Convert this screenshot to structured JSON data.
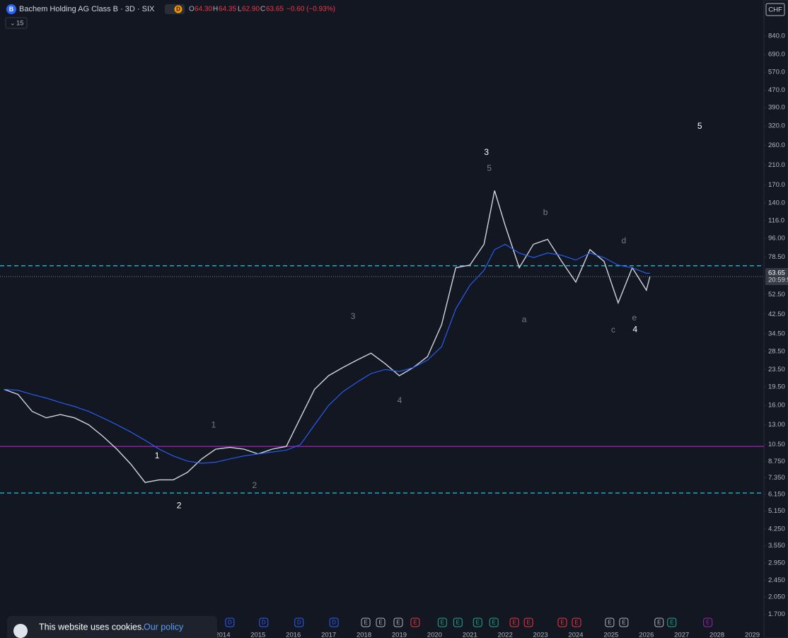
{
  "header": {
    "title": "Bachem Holding AG Class B · 3D · SIX",
    "logo": "B",
    "badge": "D",
    "o_label": "O",
    "open": "64.30",
    "h_label": "H",
    "high": "64.35",
    "l_label": "L",
    "low": "62.90",
    "c_label": "C",
    "close": "63.65",
    "change": "−0.60 (−0.93%)",
    "indicator": "15",
    "currency": "CHF"
  },
  "cookie": {
    "text": "This website uses cookies.",
    "link": "Our policy"
  },
  "chart_data": {
    "type": "line",
    "log_scale": true,
    "grid": false,
    "x": [
      2007.8,
      2008.2,
      2008.6,
      2009.0,
      2009.4,
      2009.8,
      2010.2,
      2010.6,
      2011.0,
      2011.4,
      2011.8,
      2012.2,
      2012.6,
      2013.0,
      2013.4,
      2013.8,
      2014.2,
      2014.6,
      2015.0,
      2015.4,
      2015.8,
      2016.2,
      2016.6,
      2017.0,
      2017.4,
      2017.8,
      2018.2,
      2018.6,
      2019.0,
      2019.4,
      2019.8,
      2020.2,
      2020.6,
      2021.0,
      2021.4,
      2021.7,
      2022.0,
      2022.4,
      2022.8,
      2023.2,
      2023.6,
      2024.0,
      2024.4,
      2024.8,
      2025.2,
      2025.6,
      2026.0,
      2026.1
    ],
    "series": [
      {
        "name": "Price",
        "color": "#d1d4dc",
        "values": [
          19,
          18,
          15,
          14,
          14.5,
          14,
          13,
          11.5,
          10,
          8.5,
          7,
          7.2,
          7.2,
          7.8,
          9,
          10,
          10.2,
          10,
          9.5,
          10,
          10.3,
          14,
          19,
          22,
          24,
          26,
          28,
          25,
          22,
          24,
          27,
          38,
          70,
          72,
          90,
          160,
          110,
          70,
          90,
          95,
          75,
          60,
          85,
          75,
          48,
          70,
          55,
          63.65
        ]
      },
      {
        "name": "MA",
        "color": "#2962ff",
        "values": [
          19,
          18.8,
          18,
          17.3,
          16.5,
          15.8,
          15,
          14,
          13,
          12,
          11,
          10,
          9.3,
          8.8,
          8.6,
          8.7,
          9,
          9.3,
          9.5,
          9.7,
          9.9,
          10.5,
          13,
          16,
          18.5,
          20.5,
          22.5,
          23.5,
          23,
          24,
          26,
          30,
          45,
          58,
          68,
          85,
          90,
          82,
          78,
          82,
          80,
          76,
          82,
          78,
          72,
          70,
          66,
          66
        ]
      }
    ],
    "xlim": [
      2007.69,
      2029.33
    ],
    "xticks": [
      2014,
      2015,
      2016,
      2017,
      2018,
      2019,
      2020,
      2021,
      2022,
      2023,
      2024,
      2025,
      2026,
      2027,
      2028,
      2029
    ],
    "ylim": [
      1.32,
      1236
    ],
    "yticks": [
      {
        "value": 840,
        "label": "840.0"
      },
      {
        "value": 690,
        "label": "690.0"
      },
      {
        "value": 570,
        "label": "570.0"
      },
      {
        "value": 470,
        "label": "470.0"
      },
      {
        "value": 390,
        "label": "390.0"
      },
      {
        "value": 320,
        "label": "320.0"
      },
      {
        "value": 260,
        "label": "260.0"
      },
      {
        "value": 210,
        "label": "210.0"
      },
      {
        "value": 170,
        "label": "170.0"
      },
      {
        "value": 140,
        "label": "140.0"
      },
      {
        "value": 116,
        "label": "116.0"
      },
      {
        "value": 96,
        "label": "96.00"
      },
      {
        "value": 78.5,
        "label": "78.50"
      },
      {
        "value": 52.5,
        "label": "52.50"
      },
      {
        "value": 42.5,
        "label": "42.50"
      },
      {
        "value": 34.5,
        "label": "34.50"
      },
      {
        "value": 28.5,
        "label": "28.50"
      },
      {
        "value": 23.5,
        "label": "23.50"
      },
      {
        "value": 19.5,
        "label": "19.50"
      },
      {
        "value": 16,
        "label": "16.00"
      },
      {
        "value": 13,
        "label": "13.00"
      },
      {
        "value": 10.5,
        "label": "10.50"
      },
      {
        "value": 8.75,
        "label": "8.750"
      },
      {
        "value": 7.35,
        "label": "7.350"
      },
      {
        "value": 6.15,
        "label": "6.150"
      },
      {
        "value": 5.15,
        "label": "5.150"
      },
      {
        "value": 4.25,
        "label": "4.250"
      },
      {
        "value": 3.55,
        "label": "3.550"
      },
      {
        "value": 2.95,
        "label": "2.950"
      },
      {
        "value": 2.45,
        "label": "2.450"
      },
      {
        "value": 2.05,
        "label": "2.050"
      },
      {
        "value": 1.7,
        "label": "1.700"
      }
    ],
    "price_tag": {
      "value": 63.65,
      "countdown": "20:59:5"
    },
    "levels": [
      {
        "value": 71.5,
        "color": "#26c6da",
        "dashed": true
      },
      {
        "value": 10.3,
        "color": "#9c27b0",
        "dashed": false
      },
      {
        "value": 6.25,
        "color": "#26c6da",
        "dashed": true
      }
    ],
    "annotations": [
      {
        "text": "3",
        "x": 2021.47,
        "y": 240,
        "color": "#ffffff"
      },
      {
        "text": "5",
        "x": 2021.55,
        "y": 203,
        "color": "#787b86"
      },
      {
        "text": "b",
        "x": 2023.14,
        "y": 126,
        "color": "#787b86"
      },
      {
        "text": "d",
        "x": 2025.36,
        "y": 93,
        "color": "#787b86"
      },
      {
        "text": "a",
        "x": 2022.54,
        "y": 40,
        "color": "#787b86"
      },
      {
        "text": "c",
        "x": 2025.06,
        "y": 35.8,
        "color": "#787b86"
      },
      {
        "text": "e",
        "x": 2025.66,
        "y": 40.7,
        "color": "#787b86"
      },
      {
        "text": "4",
        "x": 2025.68,
        "y": 36,
        "color": "#ffffff"
      },
      {
        "text": "5",
        "x": 2027.51,
        "y": 318,
        "color": "#ffffff"
      },
      {
        "text": "3",
        "x": 2017.69,
        "y": 41.4,
        "color": "#787b86"
      },
      {
        "text": "4",
        "x": 2019.01,
        "y": 16.8,
        "color": "#787b86"
      },
      {
        "text": "1",
        "x": 2013.74,
        "y": 12.9,
        "color": "#787b86"
      },
      {
        "text": "1",
        "x": 2012.14,
        "y": 9.3,
        "color": "#ffffff"
      },
      {
        "text": "2",
        "x": 2014.9,
        "y": 6.76,
        "color": "#787b86"
      },
      {
        "text": "2",
        "x": 2012.76,
        "y": 5.43,
        "color": "#ffffff"
      }
    ],
    "events": [
      {
        "label": "D",
        "x": 2014.2,
        "color": "#2962ff"
      },
      {
        "label": "D",
        "x": 2015.16,
        "color": "#2962ff"
      },
      {
        "label": "D",
        "x": 2016.16,
        "color": "#2962ff"
      },
      {
        "label": "D",
        "x": 2017.15,
        "color": "#2962ff"
      },
      {
        "label": "E",
        "x": 2018.05,
        "color": "#b2b5be"
      },
      {
        "label": "E",
        "x": 2018.47,
        "color": "#b2b5be"
      },
      {
        "label": "E",
        "x": 2018.97,
        "color": "#b2b5be"
      },
      {
        "label": "E",
        "x": 2019.45,
        "color": "#f23645"
      },
      {
        "label": "E",
        "x": 2020.22,
        "color": "#22ab94"
      },
      {
        "label": "E",
        "x": 2020.66,
        "color": "#22ab94"
      },
      {
        "label": "E",
        "x": 2021.22,
        "color": "#22ab94"
      },
      {
        "label": "E",
        "x": 2021.68,
        "color": "#22ab94"
      },
      {
        "label": "E",
        "x": 2022.26,
        "color": "#f23645"
      },
      {
        "label": "E",
        "x": 2022.66,
        "color": "#f23645"
      },
      {
        "label": "E",
        "x": 2023.62,
        "color": "#f23645"
      },
      {
        "label": "E",
        "x": 2024.02,
        "color": "#f23645"
      },
      {
        "label": "E",
        "x": 2024.96,
        "color": "#b2b5be"
      },
      {
        "label": "E",
        "x": 2025.36,
        "color": "#b2b5be"
      },
      {
        "label": "E",
        "x": 2026.36,
        "color": "#b2b5be"
      },
      {
        "label": "E",
        "x": 2026.72,
        "color": "#22ab94"
      },
      {
        "label": "E",
        "x": 2027.74,
        "color": "#9c27b0"
      }
    ]
  }
}
